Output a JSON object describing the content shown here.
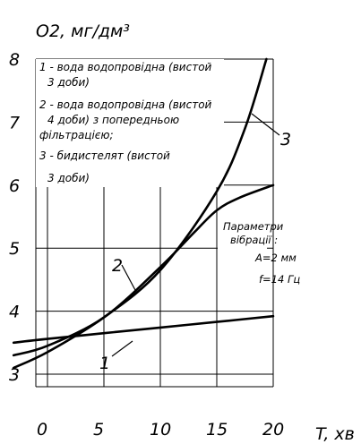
{
  "chart_data": {
    "type": "line",
    "ylabel": "O2, мг/дм³",
    "xlabel": "T, хв",
    "xlim": [
      0,
      20
    ],
    "ylim": [
      3,
      8
    ],
    "x_ticks": [
      "0",
      "5",
      "10",
      "15",
      "20"
    ],
    "y_ticks": [
      "3",
      "4",
      "5",
      "6",
      "7",
      "8"
    ],
    "grid": true,
    "legend": [
      {
        "line1": "1 - вода водопровідна (вистой",
        "line2": "3 доби)"
      },
      {
        "line1": "2 - вода водопровідна (вистой",
        "line2": "4 доби) з попередньою",
        "line3": "фільтрацією;"
      },
      {
        "line1": "3 - бидистелят (вистой",
        "line2": "3 доби)"
      }
    ],
    "annotation": {
      "title1": "Параметри",
      "title2": "вібрації :",
      "a": "A=2 мм",
      "f": "f=14 Гц"
    },
    "series": [
      {
        "label": "1",
        "x": [
          -3.0,
          0,
          5,
          10,
          15,
          20
        ],
        "y": [
          3.5,
          3.56,
          3.65,
          3.74,
          3.83,
          3.92
        ]
      },
      {
        "label": "2",
        "x": [
          -3.0,
          0,
          5,
          10,
          13,
          15,
          17,
          20
        ],
        "y": [
          3.3,
          3.45,
          3.9,
          4.7,
          5.25,
          5.6,
          5.8,
          6.0
        ]
      },
      {
        "label": "3",
        "x": [
          -3.0,
          0,
          5,
          10,
          15,
          17.5,
          19.4
        ],
        "y": [
          3.1,
          3.35,
          3.9,
          4.65,
          5.9,
          6.9,
          8.0
        ]
      }
    ]
  }
}
